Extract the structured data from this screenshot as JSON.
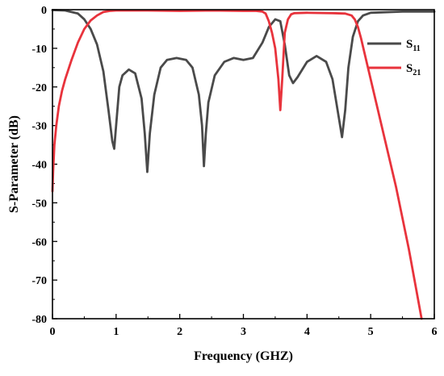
{
  "chart_data": {
    "type": "line",
    "title": "",
    "xlabel": "Frequency (GHZ)",
    "ylabel": "S-Parameter (dB)",
    "xlim": [
      0,
      6
    ],
    "ylim": [
      -80,
      0
    ],
    "xticks": [
      "0",
      "1",
      "2",
      "3",
      "4",
      "5",
      "6"
    ],
    "yticks": [
      "0",
      "-10",
      "-20",
      "-30",
      "-40",
      "-50",
      "-60",
      "-70",
      "-80"
    ],
    "grid": false,
    "legend_position": "top-right",
    "series": [
      {
        "name": "S11",
        "label_main": "S",
        "label_sub": "11",
        "color": "#4a4a4a",
        "x": [
          0,
          0.2,
          0.4,
          0.5,
          0.6,
          0.7,
          0.8,
          0.88,
          0.94,
          0.97,
          1.0,
          1.05,
          1.1,
          1.2,
          1.3,
          1.4,
          1.45,
          1.49,
          1.53,
          1.6,
          1.7,
          1.8,
          1.95,
          2.1,
          2.2,
          2.3,
          2.35,
          2.38,
          2.41,
          2.45,
          2.55,
          2.7,
          2.85,
          3.0,
          3.15,
          3.3,
          3.4,
          3.5,
          3.58,
          3.65,
          3.72,
          3.78,
          3.85,
          4.0,
          4.15,
          4.3,
          4.4,
          4.5,
          4.55,
          4.6,
          4.65,
          4.72,
          4.8,
          4.88,
          5.0,
          5.5,
          6.0
        ],
        "y": [
          -0.1,
          -0.2,
          -1.0,
          -2.5,
          -5.0,
          -9.0,
          -16.0,
          -26.0,
          -34.0,
          -36.0,
          -30.0,
          -20.0,
          -17.0,
          -15.5,
          -16.5,
          -23.0,
          -32.0,
          -42.0,
          -32.0,
          -22.0,
          -15.0,
          -13.0,
          -12.5,
          -13.0,
          -15.0,
          -22.0,
          -30.0,
          -40.5,
          -32.0,
          -24.0,
          -17.0,
          -13.5,
          -12.5,
          -13.0,
          -12.5,
          -8.5,
          -4.5,
          -2.5,
          -3.0,
          -9.0,
          -17.0,
          -19.0,
          -17.5,
          -13.5,
          -12.0,
          -13.5,
          -18.0,
          -28.0,
          -33.0,
          -26.0,
          -15.0,
          -7.0,
          -3.0,
          -1.5,
          -0.8,
          -0.5,
          -0.5
        ]
      },
      {
        "name": "S21",
        "label_main": "S",
        "label_sub": "21",
        "color": "#e8333c",
        "x": [
          0,
          0.01,
          0.03,
          0.06,
          0.1,
          0.15,
          0.2,
          0.3,
          0.4,
          0.5,
          0.6,
          0.7,
          0.8,
          0.9,
          1.0,
          1.5,
          2.0,
          2.5,
          3.0,
          3.2,
          3.3,
          3.35,
          3.4,
          3.45,
          3.5,
          3.55,
          3.58,
          3.61,
          3.65,
          3.7,
          3.75,
          3.8,
          4.0,
          4.4,
          4.6,
          4.7,
          4.75,
          4.8,
          4.85,
          4.9,
          5.0,
          5.1,
          5.2,
          5.3,
          5.4,
          5.5,
          5.6,
          5.7,
          5.8
        ],
        "y": [
          -47,
          -42,
          -35,
          -30,
          -25,
          -21,
          -18,
          -13,
          -8.5,
          -5.0,
          -2.8,
          -1.5,
          -0.6,
          -0.3,
          -0.2,
          -0.2,
          -0.3,
          -0.2,
          -0.3,
          -0.3,
          -0.5,
          -1.0,
          -3.0,
          -6.0,
          -10.0,
          -18.0,
          -26.0,
          -18.0,
          -6.0,
          -2.5,
          -1.2,
          -0.9,
          -0.8,
          -0.9,
          -1.0,
          -1.5,
          -2.5,
          -4.5,
          -7.5,
          -11.0,
          -18.0,
          -25.0,
          -32.0,
          -39.0,
          -46.0,
          -54.0,
          -62.0,
          -71.0,
          -80.0
        ]
      }
    ]
  }
}
